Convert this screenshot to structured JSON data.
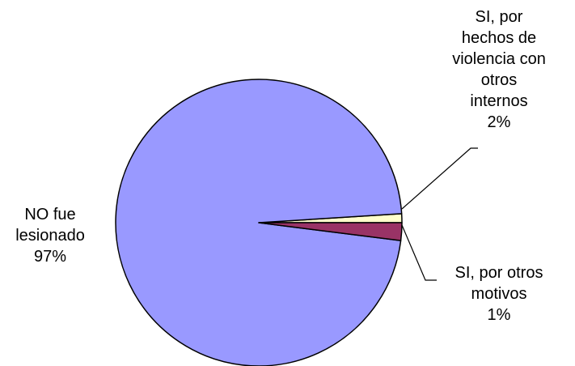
{
  "chart_data": {
    "type": "pie",
    "start_angle_deg": 0,
    "direction": "counterclockwise",
    "slices": [
      {
        "label_lines": [
          "SI, por otros",
          "motivos",
          "1%"
        ],
        "value": 1,
        "color": "#FFFFCC"
      },
      {
        "label_lines": [
          "NO fue",
          "lesionado",
          "97%"
        ],
        "value": 97,
        "color": "#9999FF"
      },
      {
        "label_lines": [
          "SI, por",
          "hechos de",
          "violencia con",
          "otros",
          "internos",
          "2%"
        ],
        "value": 2,
        "color": "#993366"
      }
    ],
    "legend": "none",
    "leader_lines": true
  }
}
